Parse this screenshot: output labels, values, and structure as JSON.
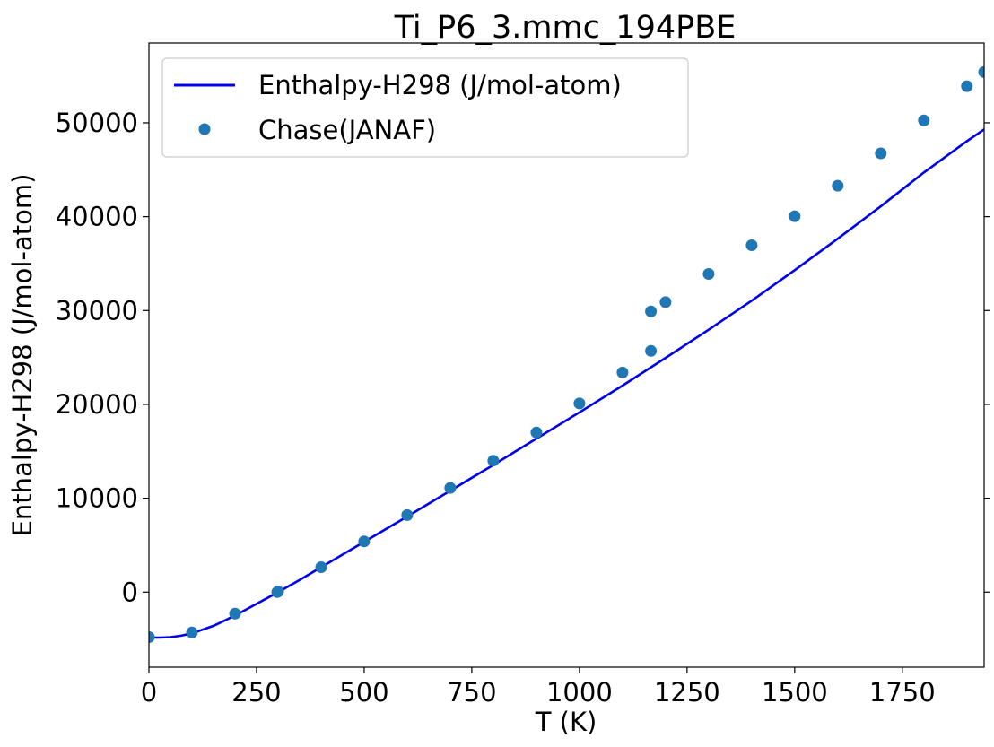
{
  "chart_data": {
    "type": "line",
    "title": "Ti_P6_3.mmc_194PBE",
    "xlabel": "T (K)",
    "ylabel": "Enthalpy-H298 (J/mol-atom)",
    "xlim": [
      0,
      1940
    ],
    "ylim": [
      -8000,
      58500
    ],
    "xticks": [
      0,
      250,
      500,
      750,
      1000,
      1250,
      1500,
      1750
    ],
    "yticks": [
      0,
      10000,
      20000,
      30000,
      40000,
      50000
    ],
    "grid": false,
    "legend_position": "top-left",
    "series": [
      {
        "name": "Enthalpy-H298 (J/mol-atom)",
        "kind": "line",
        "color": "#0000ee",
        "x": [
          0,
          25,
          50,
          75,
          100,
          150,
          200,
          250,
          300,
          350,
          400,
          450,
          500,
          550,
          600,
          700,
          800,
          900,
          1000,
          1100,
          1200,
          1300,
          1400,
          1500,
          1600,
          1700,
          1800,
          1900,
          1940
        ],
        "y": [
          -4850,
          -4850,
          -4800,
          -4650,
          -4400,
          -3600,
          -2500,
          -1250,
          0,
          1300,
          2650,
          4000,
          5350,
          6700,
          8050,
          10800,
          13550,
          16350,
          19150,
          22000,
          24950,
          27950,
          31050,
          34300,
          37650,
          41100,
          44700,
          48050,
          49300
        ]
      },
      {
        "name": "Chase(JANAF)",
        "kind": "scatter",
        "color": "#1f77b4",
        "x": [
          0,
          100,
          200,
          298,
          300,
          400,
          500,
          600,
          700,
          800,
          900,
          1000,
          1100,
          1166,
          1166,
          1200,
          1300,
          1400,
          1500,
          1600,
          1700,
          1800,
          1900,
          1940
        ],
        "y": [
          -4800,
          -4300,
          -2300,
          0,
          60,
          2650,
          5400,
          8200,
          11100,
          14000,
          17000,
          20100,
          23400,
          25700,
          29900,
          30900,
          33900,
          36950,
          40050,
          43300,
          46750,
          50250,
          53900,
          55400
        ]
      }
    ]
  }
}
